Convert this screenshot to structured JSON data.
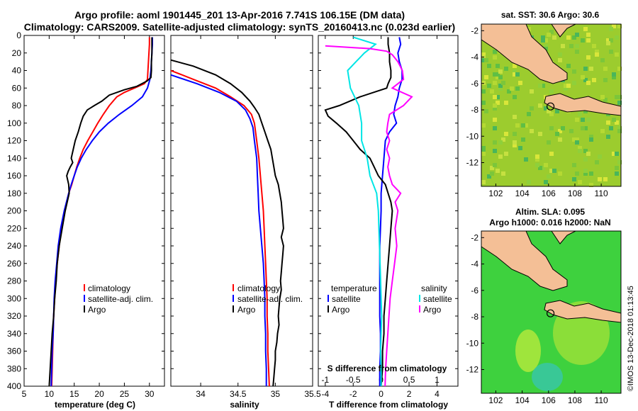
{
  "title": {
    "line1": "Argo profile: aoml 1901445_201 13-Apr-2016 7.741S 106.15E (DM data)",
    "line2": "Climatology: CARS2009. Satellite-adjusted climatology: synTS_20160413.nc (0.023d earlier)"
  },
  "credit": "©IMOS 13-Dec-2018 01:13:45",
  "depth_ticks": [
    "0",
    "20",
    "40",
    "60",
    "80",
    "100",
    "120",
    "140",
    "160",
    "180",
    "200",
    "220",
    "240",
    "260",
    "280",
    "300",
    "320",
    "340",
    "360",
    "380",
    "400"
  ],
  "colors": {
    "climatology": "#ff0000",
    "satellite": "#0000ff",
    "argo": "#000000",
    "sal_sat": "#00e5e5",
    "sal_argo": "#ff00ff"
  },
  "chart_data": [
    {
      "type": "line",
      "title": "",
      "xlabel": "temperature (deg C)",
      "ylabel": "depth",
      "xlim": [
        5,
        33
      ],
      "ylim": [
        400,
        0
      ],
      "xticks": [
        5,
        10,
        15,
        20,
        25,
        30
      ],
      "xtick_labels": [
        "5",
        "10",
        "15",
        "20",
        "25",
        "30"
      ],
      "legend": [
        "climatology",
        "satellite-adj. clim.",
        "Argo"
      ],
      "series": [
        {
          "name": "climatology",
          "depth": [
            2,
            10,
            20,
            30,
            40,
            50,
            55,
            60,
            65,
            70,
            80,
            90,
            100,
            110,
            120,
            130,
            140,
            150,
            160,
            170,
            180,
            200,
            220,
            240,
            260,
            280,
            300,
            320,
            340,
            360,
            380,
            400
          ],
          "values": [
            30.0,
            30.0,
            29.9,
            29.8,
            29.7,
            29.6,
            29.0,
            27.0,
            25.0,
            23.5,
            22.0,
            20.8,
            19.7,
            18.7,
            17.7,
            16.8,
            16.1,
            15.5,
            15.0,
            14.5,
            13.9,
            13.1,
            12.4,
            12.0,
            11.6,
            11.3,
            11.1,
            10.9,
            10.8,
            10.7,
            10.6,
            10.5
          ]
        },
        {
          "name": "satellite-adj. clim.",
          "depth": [
            2,
            10,
            20,
            30,
            40,
            50,
            60,
            70,
            80,
            90,
            100,
            110,
            120,
            130,
            140,
            150,
            160,
            170,
            180,
            200,
            220,
            240,
            260,
            280,
            300,
            320,
            340,
            360,
            380,
            400
          ],
          "values": [
            30.6,
            30.6,
            30.5,
            30.4,
            30.3,
            30.1,
            29.6,
            28.6,
            26.5,
            24.0,
            21.8,
            20.0,
            18.6,
            17.4,
            16.4,
            15.6,
            15.0,
            14.4,
            13.9,
            13.0,
            12.3,
            11.8,
            11.5,
            11.2,
            11.0,
            10.9,
            10.8,
            10.6,
            10.5,
            10.4
          ]
        },
        {
          "name": "Argo",
          "depth": [
            2,
            10,
            20,
            30,
            40,
            48,
            52,
            58,
            62,
            68,
            75,
            80,
            85,
            92,
            100,
            110,
            120,
            130,
            140,
            145,
            150,
            155,
            160,
            170,
            180,
            200,
            220,
            240,
            260,
            280,
            300,
            320,
            340,
            360,
            380,
            400
          ],
          "values": [
            30.5,
            30.5,
            30.5,
            30.4,
            30.4,
            30.3,
            29.5,
            27.5,
            25.0,
            22.0,
            20.5,
            19.0,
            17.6,
            16.8,
            16.3,
            15.8,
            15.2,
            14.8,
            14.4,
            14.7,
            14.2,
            13.8,
            13.5,
            13.9,
            14.0,
            13.2,
            12.6,
            12.0,
            11.6,
            11.4,
            11.1,
            10.9,
            10.6,
            10.4,
            10.2,
            10.0
          ]
        }
      ]
    },
    {
      "type": "line",
      "title": "",
      "xlabel": "salinity",
      "ylabel": "depth",
      "xlim": [
        33.6,
        35.5
      ],
      "ylim": [
        400,
        0
      ],
      "xticks": [
        34,
        34.5,
        35,
        35.5
      ],
      "xtick_labels": [
        "34",
        "34.5",
        "35",
        "35.5"
      ],
      "legend": [
        "climatology",
        "satellite-adj. clim.",
        "Argo"
      ],
      "series": [
        {
          "name": "climatology",
          "depth": [
            40,
            50,
            60,
            70,
            80,
            90,
            100,
            120,
            140,
            160,
            180,
            200,
            220,
            240,
            260,
            280,
            300,
            320,
            340,
            360,
            380,
            400
          ],
          "values": [
            33.6,
            33.9,
            34.2,
            34.4,
            34.58,
            34.68,
            34.72,
            34.75,
            34.78,
            34.8,
            34.82,
            34.84,
            34.85,
            34.86,
            34.87,
            34.88,
            34.89,
            34.89,
            34.9,
            34.9,
            34.91,
            34.92
          ]
        },
        {
          "name": "satellite-adj. clim.",
          "depth": [
            45,
            55,
            65,
            75,
            85,
            95,
            105,
            120,
            140,
            160,
            180,
            200,
            220,
            240,
            260,
            280,
            300,
            320,
            340,
            360,
            380,
            400
          ],
          "values": [
            33.6,
            33.95,
            34.25,
            34.48,
            34.6,
            34.66,
            34.7,
            34.72,
            34.75,
            34.76,
            34.77,
            34.78,
            34.8,
            34.82,
            34.84,
            34.85,
            34.86,
            34.86,
            34.87,
            34.87,
            34.88,
            34.88
          ]
        },
        {
          "name": "Argo",
          "depth": [
            28,
            35,
            45,
            55,
            65,
            75,
            82,
            90,
            100,
            110,
            120,
            130,
            140,
            150,
            160,
            170,
            180,
            190,
            200,
            210,
            220,
            230,
            240,
            250,
            260,
            270,
            280,
            290,
            300,
            310,
            320,
            330,
            340,
            350,
            360,
            370,
            380,
            390,
            400
          ],
          "values": [
            33.6,
            33.9,
            34.2,
            34.4,
            34.55,
            34.66,
            34.72,
            34.78,
            34.82,
            34.86,
            34.9,
            34.94,
            34.96,
            34.98,
            35.0,
            35.04,
            35.06,
            35.08,
            35.09,
            35.1,
            35.11,
            35.08,
            35.11,
            35.1,
            35.09,
            35.08,
            35.07,
            35.08,
            35.06,
            35.05,
            35.04,
            35.05,
            35.03,
            35.02,
            35.0,
            35.0,
            34.99,
            34.98,
            34.97
          ]
        }
      ]
    },
    {
      "type": "line",
      "title": "",
      "xlabel": "T difference from climatology",
      "x2label": "S difference from climatology",
      "ylabel": "depth",
      "xlim": [
        -4.5,
        5.5
      ],
      "ylim": [
        400,
        0
      ],
      "xticks": [
        -4,
        -2,
        0,
        2,
        4
      ],
      "xtick_labels": [
        "-4",
        "-2",
        "0",
        "2",
        "4"
      ],
      "x2ticks": [
        -1,
        -0.5,
        0,
        0.5,
        1
      ],
      "x2tick_labels": [
        "-1",
        "-0.5",
        "0",
        "0.5",
        "1"
      ],
      "legend_temperature": {
        "heading": "temperature",
        "items": [
          "satellite",
          "Argo"
        ]
      },
      "legend_salinity": {
        "heading": "salinity",
        "items": [
          "satellite",
          "Argo"
        ]
      },
      "series": [
        {
          "name": "T satellite",
          "units": "degC",
          "depth": [
            2,
            10,
            20,
            30,
            40,
            50,
            60,
            70,
            80,
            90,
            100,
            110,
            120,
            140,
            160,
            180,
            200,
            220,
            240,
            260,
            280,
            300,
            320,
            340,
            360,
            380,
            400
          ],
          "values": [
            1.3,
            1.4,
            1.2,
            1.3,
            1.5,
            1.5,
            1.3,
            1.2,
            1.0,
            0.9,
            1.1,
            0.6,
            0.3,
            0.2,
            0.1,
            0.0,
            0.0,
            -0.05,
            -0.1,
            -0.1,
            -0.1,
            -0.1,
            -0.1,
            -0.05,
            -0.05,
            -0.1,
            -0.1
          ]
        },
        {
          "name": "T Argo",
          "units": "degC",
          "depth": [
            2,
            10,
            20,
            30,
            40,
            48,
            55,
            60,
            70,
            80,
            85,
            92,
            100,
            110,
            120,
            130,
            140,
            150,
            160,
            170,
            180,
            190,
            200,
            220,
            240,
            260,
            280,
            300,
            320,
            340,
            360,
            380,
            400
          ],
          "values": [
            0.5,
            0.5,
            0.6,
            0.6,
            0.7,
            0.7,
            0.5,
            0.4,
            -1.5,
            -3.0,
            -4.0,
            -3.8,
            -3.2,
            -2.5,
            -2.0,
            -1.5,
            -0.8,
            -0.5,
            -0.2,
            0.3,
            0.5,
            0.7,
            0.8,
            0.7,
            0.6,
            0.5,
            0.4,
            0.3,
            0.2,
            0.2,
            0.1,
            0.1,
            0.0
          ]
        },
        {
          "name": "S satellite",
          "units": "psu",
          "depth": [
            2,
            10,
            20,
            30,
            40,
            60,
            80,
            100,
            120,
            140,
            160,
            180,
            200,
            220,
            240,
            260,
            280,
            300,
            320,
            340,
            360,
            380,
            400
          ],
          "values": [
            -0.5,
            -0.1,
            -0.3,
            -0.45,
            -0.6,
            -0.55,
            -0.4,
            -0.35,
            -0.35,
            -0.25,
            -0.2,
            -0.08,
            -0.05,
            -0.04,
            -0.03,
            -0.02,
            -0.01,
            0.0,
            0.01,
            0.0,
            -0.01,
            0.0,
            0.0
          ]
        },
        {
          "name": "S Argo",
          "units": "psu",
          "depth": [
            12,
            15,
            18,
            22,
            30,
            40,
            50,
            60,
            70,
            80,
            90,
            100,
            110,
            120,
            130,
            140,
            150,
            160,
            170,
            180,
            190,
            200,
            220,
            240,
            260,
            280,
            300,
            320,
            340,
            360,
            380,
            400
          ],
          "values": [
            -1.0,
            -0.2,
            0.1,
            0.2,
            0.3,
            0.38,
            0.4,
            0.2,
            0.55,
            0.4,
            0.15,
            0.12,
            0.1,
            0.15,
            0.1,
            0.15,
            0.12,
            0.15,
            0.2,
            0.35,
            0.25,
            0.3,
            0.25,
            0.28,
            0.24,
            0.2,
            0.16,
            0.14,
            0.12,
            0.1,
            0.08,
            0.07
          ]
        }
      ]
    }
  ],
  "maps": {
    "sst": {
      "title": "sat. SST: 30.6 Argo: 30.6",
      "yticks": [
        "-2",
        "-4",
        "-6",
        "-8",
        "-10",
        "-12"
      ],
      "xticks": [
        "102",
        "104",
        "106",
        "108",
        "110"
      ],
      "argo_position": "7.741S 106.15E"
    },
    "sla": {
      "title1": "Altim. SLA: 0.095",
      "title2": "Argo h1000: 0.016 h2000: NaN",
      "yticks": [
        "-2",
        "-4",
        "-6",
        "-8",
        "-10",
        "-12"
      ],
      "xticks": [
        "102",
        "104",
        "106",
        "108",
        "110"
      ],
      "argo_position": "7.741S 106.15E"
    }
  }
}
